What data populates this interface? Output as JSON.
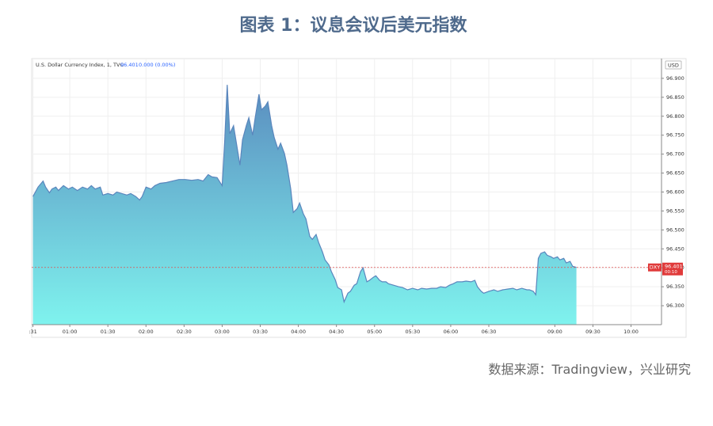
{
  "chart_data": {
    "type": "area",
    "title": "图表 1：议息会议后美元指数",
    "legend_text": [
      "U.S. Dollar Currency Index, 1, TVC",
      "96.401",
      "0.000 (0.00%)"
    ],
    "currency": "USD",
    "source": "数据来源：Tradingview，兴业研究",
    "price_label": {
      "symbol": "DXY",
      "value": 96.401,
      "countdown": "00:10"
    },
    "line_color": "#5a86bd",
    "fill_top": "#5a8cbf",
    "fill_bottom": "#7ff3ee",
    "grid": true,
    "xlim": [
      -1,
      495
    ],
    "xticks": [
      {
        "value": 0,
        "label": ":31"
      },
      {
        "value": 29,
        "label": "01:00"
      },
      {
        "value": 59,
        "label": "01:30"
      },
      {
        "value": 89,
        "label": "02:00"
      },
      {
        "value": 119,
        "label": "02:30"
      },
      {
        "value": 149,
        "label": "03:00"
      },
      {
        "value": 179,
        "label": "03:30"
      },
      {
        "value": 209,
        "label": "04:00"
      },
      {
        "value": 239,
        "label": "04:30"
      },
      {
        "value": 269,
        "label": "05:00"
      },
      {
        "value": 299,
        "label": "05:30"
      },
      {
        "value": 329,
        "label": "06:00"
      },
      {
        "value": 359,
        "label": "06:30"
      },
      {
        "value": 411,
        "label": "09:00"
      },
      {
        "value": 441,
        "label": "09:30"
      },
      {
        "value": 471,
        "label": "10:00"
      }
    ],
    "ylim": [
      96.25,
      96.95
    ],
    "yticks": [
      {
        "value": 96.3,
        "label": "96.300"
      },
      {
        "value": 96.35,
        "label": "96.350"
      },
      {
        "value": 96.4,
        "label": "96.400"
      },
      {
        "value": 96.45,
        "label": "96.450"
      },
      {
        "value": 96.5,
        "label": "96.500"
      },
      {
        "value": 96.55,
        "label": "96.550"
      },
      {
        "value": 96.6,
        "label": "96.600"
      },
      {
        "value": 96.65,
        "label": "96.650"
      },
      {
        "value": 96.7,
        "label": "96.700"
      },
      {
        "value": 96.75,
        "label": "96.750"
      },
      {
        "value": 96.8,
        "label": "96.800"
      },
      {
        "value": 96.85,
        "label": "96.850"
      },
      {
        "value": 96.9,
        "label": "96.900"
      }
    ],
    "x": [
      0,
      4,
      8,
      10,
      13,
      15,
      18,
      20,
      24,
      28,
      31,
      35,
      39,
      43,
      46,
      49,
      53,
      55,
      59,
      63,
      66,
      70,
      74,
      77,
      81,
      84,
      86,
      89,
      93,
      96,
      100,
      105,
      110,
      115,
      120,
      125,
      130,
      134,
      138,
      141,
      145,
      149,
      151,
      153,
      155,
      158,
      160,
      163,
      165,
      168,
      170,
      173,
      175,
      178,
      180,
      183,
      185,
      188,
      190,
      193,
      195,
      198,
      200,
      203,
      205,
      208,
      210,
      213,
      215,
      218,
      220,
      223,
      225,
      228,
      230,
      233,
      235,
      238,
      240,
      243,
      245,
      248,
      250,
      253,
      255,
      258,
      260,
      263,
      265,
      268,
      270,
      273,
      275,
      278,
      280,
      284,
      288,
      291,
      295,
      299,
      303,
      306,
      310,
      314,
      318,
      321,
      325,
      328,
      331,
      334,
      338,
      341,
      345,
      348,
      350,
      353,
      355,
      359,
      363,
      366,
      370,
      374,
      378,
      381,
      385,
      389,
      391,
      394,
      396,
      398,
      400,
      403,
      405,
      408,
      410,
      413,
      415,
      418,
      420,
      423,
      425,
      428
    ],
    "values": [
      96.588,
      96.613,
      96.629,
      96.613,
      96.598,
      96.608,
      96.613,
      96.604,
      96.617,
      96.608,
      96.613,
      96.604,
      96.613,
      96.608,
      96.617,
      96.608,
      96.613,
      96.592,
      96.596,
      96.592,
      96.6,
      96.596,
      96.592,
      96.596,
      96.588,
      96.579,
      96.588,
      96.613,
      96.608,
      96.617,
      96.623,
      96.625,
      96.629,
      96.633,
      96.633,
      96.631,
      96.633,
      96.629,
      96.646,
      96.64,
      96.638,
      96.617,
      96.733,
      96.883,
      96.754,
      96.775,
      96.733,
      96.671,
      96.738,
      96.775,
      96.796,
      96.75,
      96.796,
      96.858,
      96.817,
      96.827,
      96.838,
      96.775,
      96.744,
      96.713,
      96.729,
      96.702,
      96.671,
      96.608,
      96.546,
      96.556,
      96.571,
      96.542,
      96.529,
      96.483,
      96.475,
      96.488,
      96.467,
      96.442,
      96.421,
      96.408,
      96.39,
      96.369,
      96.348,
      96.342,
      96.31,
      96.333,
      96.338,
      96.354,
      96.358,
      96.39,
      96.4,
      96.363,
      96.367,
      96.375,
      96.379,
      96.367,
      96.363,
      96.363,
      96.358,
      96.354,
      96.35,
      96.348,
      96.342,
      96.346,
      96.342,
      96.346,
      96.344,
      96.346,
      96.346,
      96.35,
      96.348,
      96.354,
      96.358,
      96.363,
      96.363,
      96.365,
      96.363,
      96.367,
      96.35,
      96.338,
      96.333,
      96.338,
      96.342,
      96.338,
      96.342,
      96.344,
      96.346,
      96.342,
      96.346,
      96.342,
      96.342,
      96.338,
      96.329,
      96.425,
      96.438,
      96.442,
      96.433,
      96.429,
      96.425,
      96.429,
      96.421,
      96.425,
      96.413,
      96.417,
      96.404,
      96.401
    ]
  }
}
